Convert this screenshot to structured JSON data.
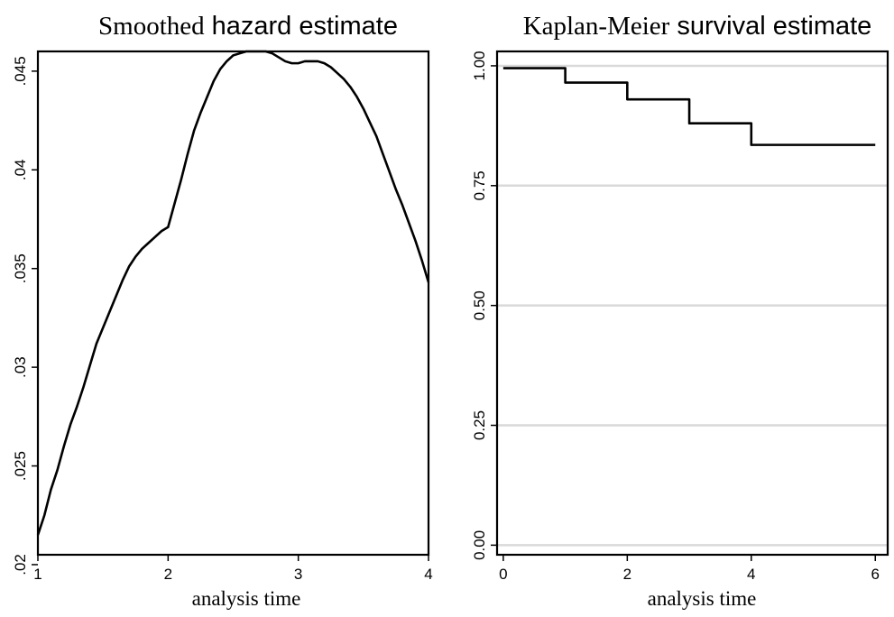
{
  "chart_data": [
    {
      "type": "line",
      "title_part1": "Smoothed",
      "title_part2": "hazard estimate",
      "xlabel": "analysis time",
      "ylabel": "",
      "xlim": [
        1,
        4
      ],
      "ylim": [
        0.0205,
        0.046
      ],
      "grid": false,
      "x_ticks": [
        1,
        2,
        3,
        4
      ],
      "x_tick_labels": [
        "1",
        "2",
        "3",
        "4"
      ],
      "y_ticks": [
        0.02,
        0.025,
        0.03,
        0.035,
        0.04,
        0.045
      ],
      "y_tick_labels": [
        ".02",
        ".025",
        ".03",
        ".035",
        ".04",
        ".045"
      ],
      "series": [
        {
          "x": [
            1.0,
            1.05,
            1.1,
            1.15,
            1.2,
            1.25,
            1.3,
            1.35,
            1.4,
            1.45,
            1.5,
            1.55,
            1.6,
            1.65,
            1.7,
            1.75,
            1.8,
            1.85,
            1.9,
            1.95,
            2.0,
            2.05,
            2.1,
            2.15,
            2.2,
            2.25,
            2.3,
            2.35,
            2.4,
            2.45,
            2.5,
            2.55,
            2.6,
            2.65,
            2.7,
            2.75,
            2.8,
            2.85,
            2.9,
            2.95,
            3.0,
            3.05,
            3.1,
            3.15,
            3.2,
            3.25,
            3.3,
            3.35,
            3.4,
            3.45,
            3.5,
            3.55,
            3.6,
            3.65,
            3.7,
            3.75,
            3.8,
            3.85,
            3.9,
            3.95,
            4.0
          ],
          "values": [
            0.0215,
            0.0225,
            0.0238,
            0.0248,
            0.026,
            0.0271,
            0.028,
            0.029,
            0.0301,
            0.0312,
            0.032,
            0.0328,
            0.0336,
            0.0344,
            0.0351,
            0.0356,
            0.036,
            0.0363,
            0.0366,
            0.0369,
            0.0371,
            0.0383,
            0.0395,
            0.0408,
            0.042,
            0.0429,
            0.0437,
            0.0445,
            0.0451,
            0.0455,
            0.0458,
            0.0459,
            0.046,
            0.046,
            0.046,
            0.046,
            0.0459,
            0.0457,
            0.0455,
            0.0454,
            0.0454,
            0.0455,
            0.0455,
            0.0455,
            0.0454,
            0.0452,
            0.0449,
            0.0446,
            0.0442,
            0.0437,
            0.0431,
            0.0424,
            0.0417,
            0.0408,
            0.0399,
            0.039,
            0.0382,
            0.0373,
            0.0364,
            0.0354,
            0.0343
          ]
        }
      ]
    },
    {
      "type": "line",
      "title_part1": "Kaplan-Meier",
      "title_part2": "survival estimate",
      "xlabel": "analysis time",
      "ylabel": "",
      "xlim": [
        -0.1,
        6.2
      ],
      "ylim": [
        -0.02,
        1.03
      ],
      "grid": true,
      "x_ticks": [
        0,
        2,
        4,
        6
      ],
      "x_tick_labels": [
        "0",
        "2",
        "4",
        "6"
      ],
      "y_ticks": [
        0,
        0.25,
        0.5,
        0.75,
        1
      ],
      "y_tick_labels": [
        "0.00",
        "0.25",
        "0.50",
        "0.75",
        "1.00"
      ],
      "series": [
        {
          "x": [
            0,
            1,
            2,
            3,
            4,
            6
          ],
          "values": [
            0.995,
            0.965,
            0.93,
            0.88,
            0.835,
            0.835
          ]
        }
      ]
    }
  ]
}
